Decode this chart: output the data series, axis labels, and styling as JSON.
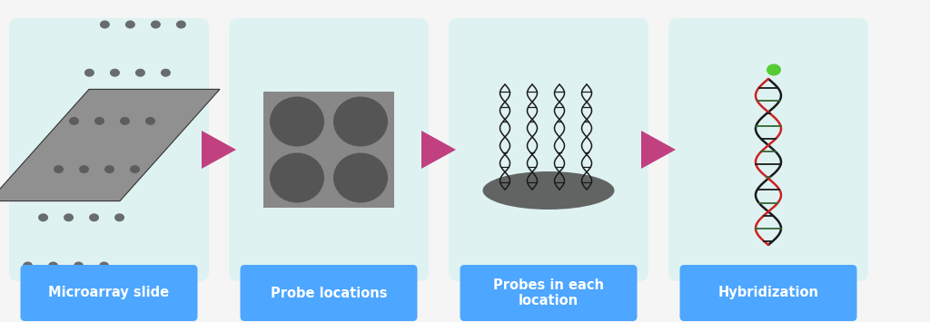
{
  "bg_color": "#f5f5f5",
  "panel_bg": "#dff2f2",
  "arrow_color": "#c04080",
  "label_bg": "#4da6ff",
  "label_text_color": "#ffffff",
  "label_fontsize": 10.5,
  "labels": [
    "Microarray slide",
    "Probe locations",
    "Probes in each\nlocation",
    "Hybridization"
  ],
  "slide_color": "#909090",
  "slide_dot_color": "#555555",
  "dna_black": "#1a1a1a",
  "dna_red": "#cc2222",
  "dna_green_rung": "#336633",
  "ball_color": "#55cc33",
  "shadow_color": "#555555",
  "probe_loc_bg": "#888888",
  "probe_loc_circle": "#555555"
}
